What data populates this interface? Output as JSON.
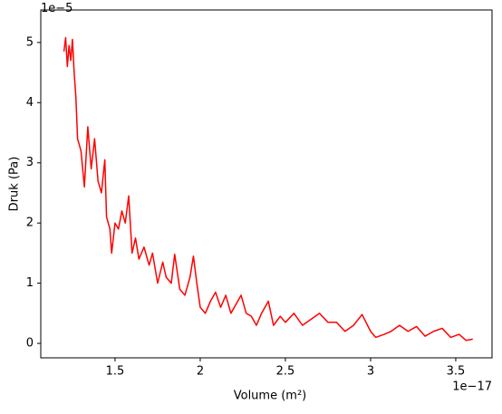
{
  "chart_data": {
    "type": "line",
    "xlabel": "Volume (m²)",
    "ylabel": "Druk (Pa)",
    "x_offset_text": "1e−17",
    "y_offset_text": "1e−5",
    "x": [
      1.2,
      1.21,
      1.22,
      1.23,
      1.24,
      1.25,
      1.26,
      1.27,
      1.28,
      1.3,
      1.32,
      1.34,
      1.36,
      1.38,
      1.4,
      1.42,
      1.44,
      1.45,
      1.47,
      1.48,
      1.5,
      1.52,
      1.54,
      1.56,
      1.58,
      1.6,
      1.62,
      1.64,
      1.67,
      1.7,
      1.72,
      1.75,
      1.78,
      1.8,
      1.83,
      1.85,
      1.88,
      1.91,
      1.94,
      1.96,
      1.98,
      2.0,
      2.03,
      2.06,
      2.09,
      2.12,
      2.15,
      2.18,
      2.21,
      2.24,
      2.27,
      2.3,
      2.33,
      2.36,
      2.4,
      2.43,
      2.47,
      2.5,
      2.55,
      2.6,
      2.65,
      2.7,
      2.75,
      2.8,
      2.85,
      2.9,
      2.95,
      3.0,
      3.03,
      3.08,
      3.12,
      3.17,
      3.22,
      3.27,
      3.32,
      3.37,
      3.42,
      3.47,
      3.52,
      3.56,
      3.6
    ],
    "series": [
      {
        "color": "#ff0000",
        "values": [
          4.85,
          5.08,
          4.6,
          4.95,
          4.7,
          5.05,
          4.5,
          4.1,
          3.4,
          3.2,
          2.6,
          3.6,
          2.9,
          3.4,
          2.7,
          2.5,
          3.05,
          2.1,
          1.9,
          1.5,
          2.0,
          1.9,
          2.2,
          2.0,
          2.45,
          1.5,
          1.75,
          1.4,
          1.6,
          1.3,
          1.5,
          1.0,
          1.35,
          1.1,
          1.0,
          1.48,
          0.9,
          0.8,
          1.1,
          1.45,
          1.0,
          0.6,
          0.5,
          0.7,
          0.85,
          0.6,
          0.8,
          0.5,
          0.65,
          0.8,
          0.5,
          0.45,
          0.3,
          0.5,
          0.7,
          0.3,
          0.45,
          0.35,
          0.5,
          0.3,
          0.4,
          0.5,
          0.35,
          0.35,
          0.2,
          0.3,
          0.48,
          0.2,
          0.1,
          0.15,
          0.2,
          0.3,
          0.2,
          0.28,
          0.12,
          0.2,
          0.25,
          0.1,
          0.15,
          0.05,
          0.07
        ]
      }
    ],
    "xlim": [
      1.064,
      3.713
    ],
    "ylim": [
      -0.24,
      5.54
    ],
    "xticks": [
      1.5,
      2.0,
      2.5,
      3.0,
      3.5
    ],
    "yticks": [
      0,
      1,
      2,
      3,
      4,
      5
    ]
  }
}
